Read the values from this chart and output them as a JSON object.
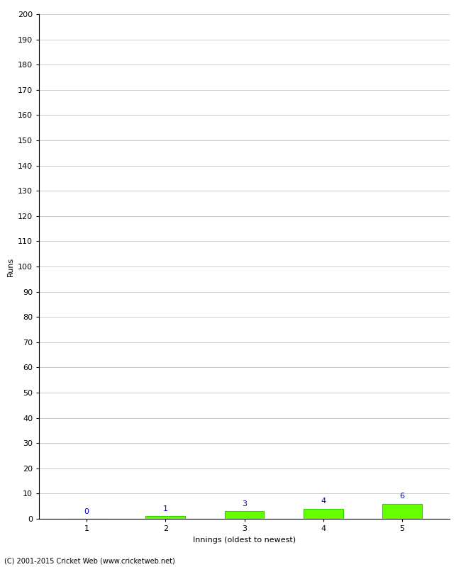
{
  "categories": [
    1,
    2,
    3,
    4,
    5
  ],
  "values": [
    0,
    1,
    3,
    4,
    6
  ],
  "bar_color": "#66ff00",
  "bar_edge_color": "#33cc00",
  "value_labels": [
    "0",
    "1",
    "3",
    "4",
    "6"
  ],
  "value_label_color": "#0000cc",
  "xlabel": "Innings (oldest to newest)",
  "ylabel": "Runs",
  "ylim": [
    0,
    200
  ],
  "ytick_interval": 10,
  "footer": "(C) 2001-2015 Cricket Web (www.cricketweb.net)",
  "background_color": "#ffffff",
  "grid_color": "#cccccc",
  "bar_width": 0.5,
  "tick_fontsize": 8,
  "label_fontsize": 8,
  "value_label_fontsize": 8
}
